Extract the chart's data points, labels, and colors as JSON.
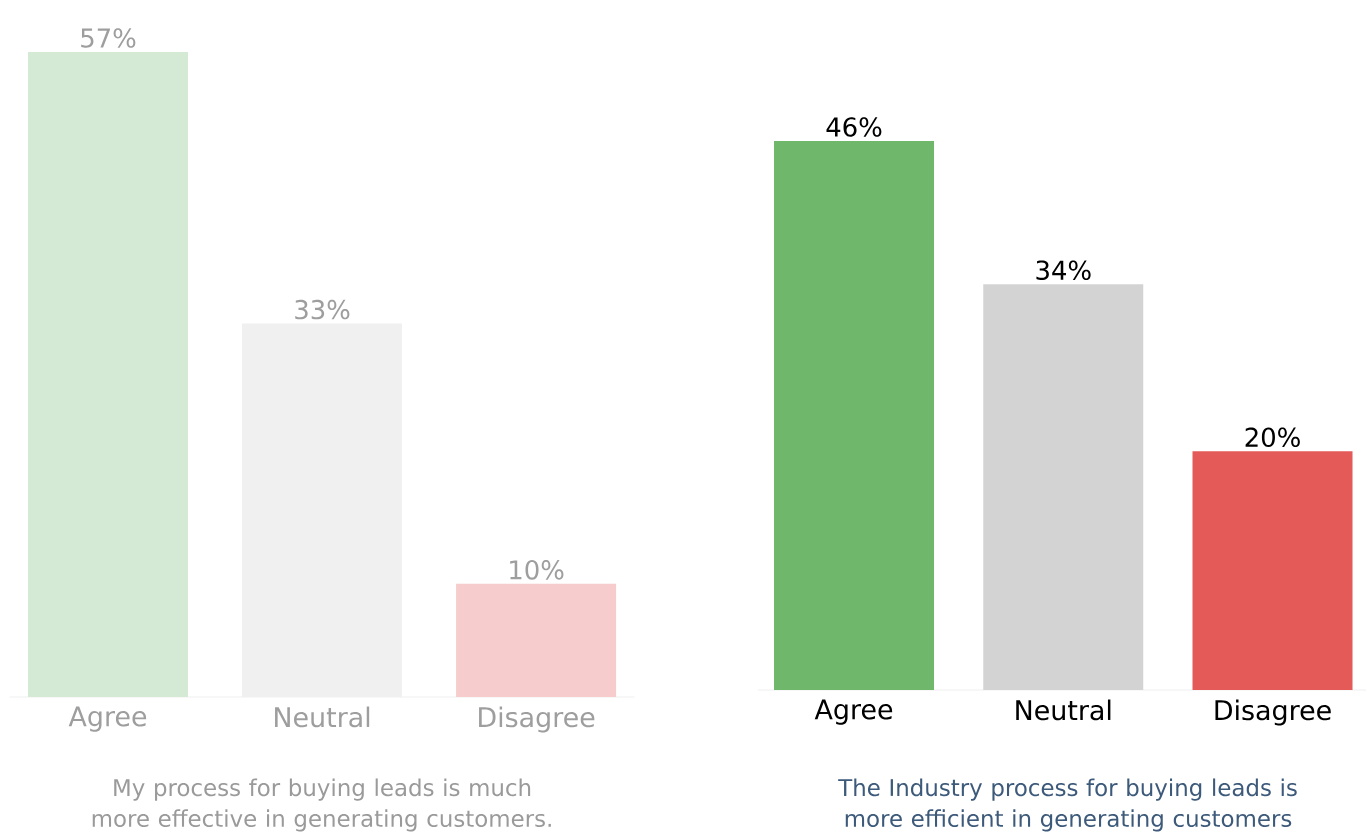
{
  "chart_data": [
    {
      "type": "bar",
      "title": "My process for buying leads is much more effective in generating customers.",
      "categories": [
        "Agree",
        "Neutral",
        "Disagree"
      ],
      "values": [
        57,
        33,
        10
      ],
      "colors": [
        "#d5ead5",
        "#f0f0f0",
        "#f6cccc"
      ],
      "value_labels": [
        "57%",
        "33%",
        "10%"
      ]
    },
    {
      "type": "bar",
      "title": "The Industry process for buying leads is more efficient in generating customers",
      "categories": [
        "Agree",
        "Neutral",
        "Disagree"
      ],
      "values": [
        46,
        34,
        20
      ],
      "colors": [
        "#6fb86b",
        "#d3d3d3",
        "#e35a58"
      ],
      "value_labels": [
        "46%",
        "34%",
        "20%"
      ]
    }
  ]
}
